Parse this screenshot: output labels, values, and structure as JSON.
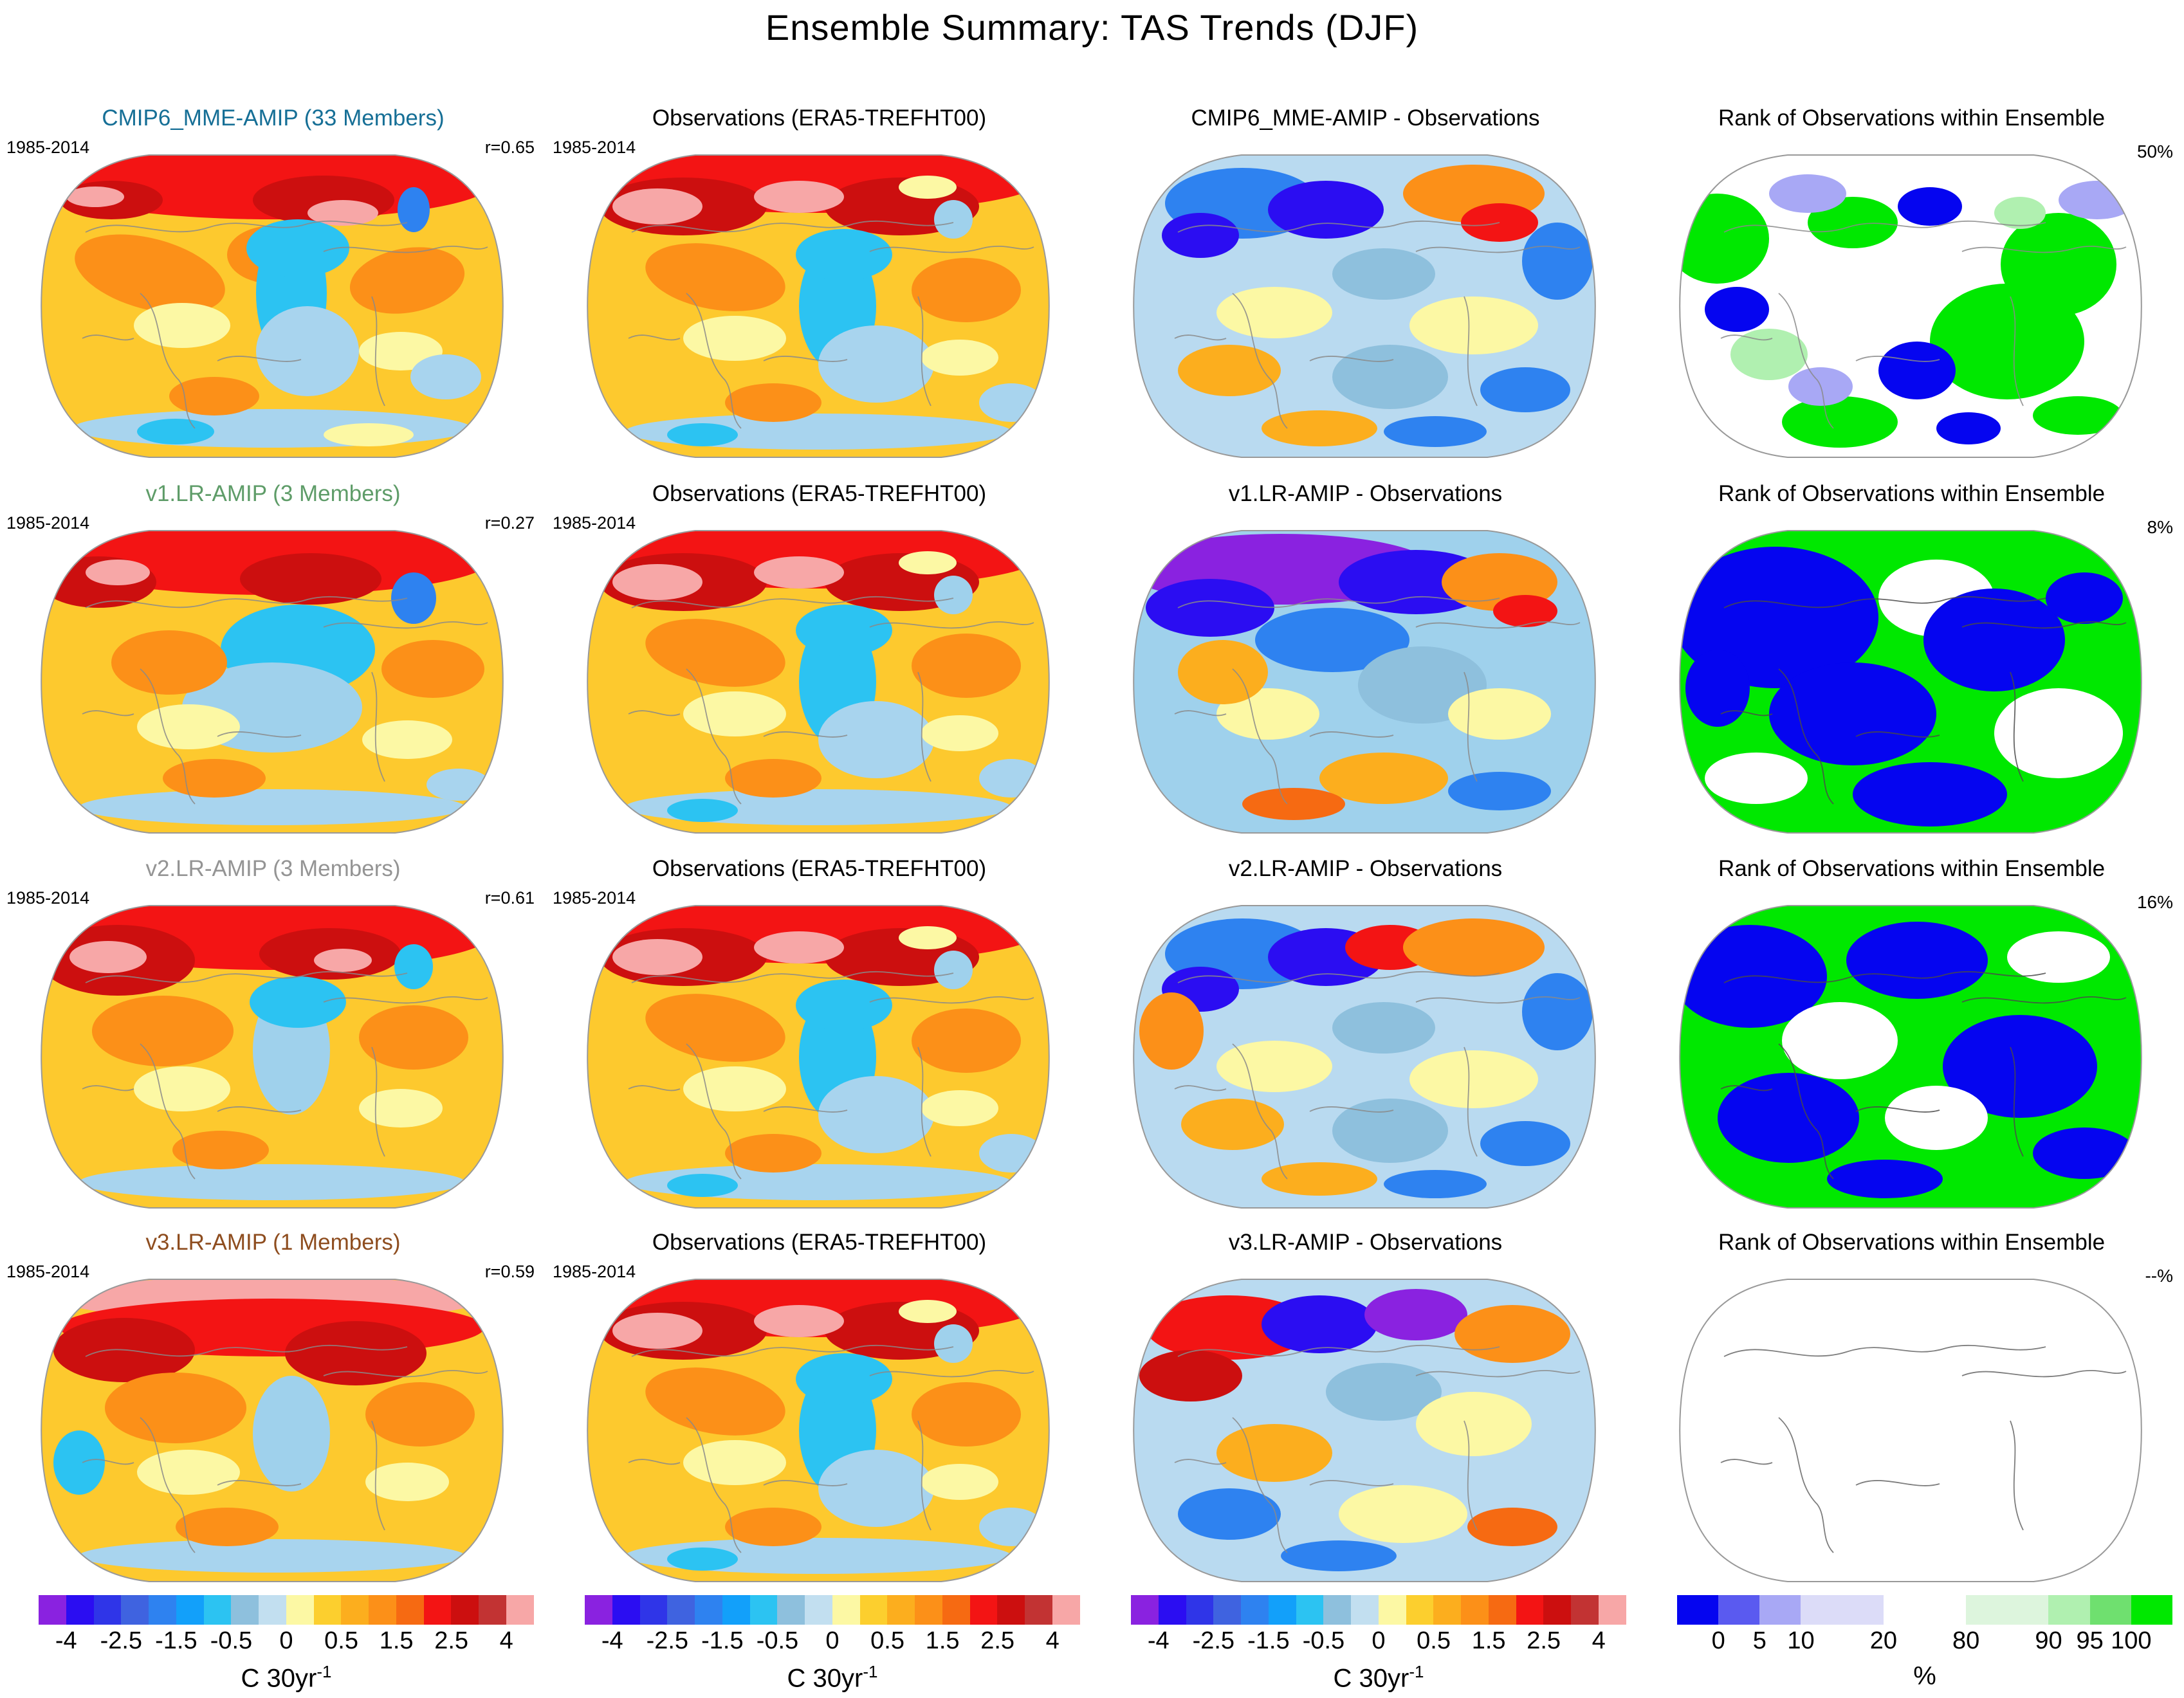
{
  "title": "Ensemble Summary: TAS Trends (DJF)",
  "rows": [
    {
      "model_title": "CMIP6_MME-AMIP (33 Members)",
      "title_style": "color:#166f96",
      "period": "1985-2014",
      "r_label": "r=0.65",
      "obs_title": "Observations (ERA5-TREFHT00)",
      "obs_period": "1985-2014",
      "diff_title": "CMIP6_MME-AMIP - Observations",
      "rank_title": "Rank of Observations within Ensemble",
      "rank_label": "50%"
    },
    {
      "model_title": "v1.LR-AMIP (3 Members)",
      "title_style": "color:#5e9c68",
      "period": "1985-2014",
      "r_label": "r=0.27",
      "obs_title": "Observations (ERA5-TREFHT00)",
      "obs_period": "1985-2014",
      "diff_title": "v1.LR-AMIP - Observations",
      "rank_title": "Rank of Observations within Ensemble",
      "rank_label": "8%"
    },
    {
      "model_title": "v2.LR-AMIP (3 Members)",
      "title_style": "color:#949494",
      "period": "1985-2014",
      "r_label": "r=0.61",
      "obs_title": "Observations (ERA5-TREFHT00)",
      "obs_period": "1985-2014",
      "diff_title": "v2.LR-AMIP - Observations",
      "rank_title": "Rank of Observations within Ensemble",
      "rank_label": "16%"
    },
    {
      "model_title": "v3.LR-AMIP (1 Members)",
      "title_style": "color:#8e4d1f",
      "period": "1985-2014",
      "r_label": "r=0.59",
      "obs_title": "Observations (ERA5-TREFHT00)",
      "obs_period": "1985-2014",
      "diff_title": "v3.LR-AMIP - Observations",
      "rank_title": "Rank of Observations within Ensemble",
      "rank_label": "--%"
    }
  ],
  "colorbars": {
    "temperature": {
      "ticks": [
        "-4",
        "-2.5",
        "-1.5",
        "-0.5",
        "0",
        "0.5",
        "1.5",
        "2.5",
        "4"
      ],
      "colors": [
        "#8a22e0",
        "#2b0df2",
        "#2f35e8",
        "#3f63e0",
        "#2e82f0",
        "#12a0fa",
        "#2cc3f2",
        "#8ec0dd",
        "#c2dff0",
        "#fcf8a4",
        "#fccf2e",
        "#fcae1e",
        "#fc9018",
        "#f66a12",
        "#f31414",
        "#cc0f0f",
        "#c23333",
        "#f7a7a7"
      ],
      "unit_base": "C 30yr",
      "unit_exp": "-1"
    },
    "rank": {
      "ticks": [
        "0",
        "5",
        "10",
        "20",
        "80",
        "90",
        "95",
        "100"
      ],
      "colors": [
        "#0505f0",
        "#5a5af0",
        "#a8a8f5",
        "#dcdcf8",
        "#ffffff",
        "#ddf5dd",
        "#b0f0b0",
        "#6fe06f",
        "#00e800"
      ],
      "segment_widths": [
        1,
        1,
        1,
        2,
        2,
        2,
        1,
        1,
        1
      ],
      "unit": "%"
    }
  },
  "chart_data": {
    "type": "heatmap",
    "subtype": "global-map-grid",
    "title": "Ensemble Summary: TAS Trends (DJF)",
    "projection": "Robinson",
    "variable": "TAS trend",
    "season": "DJF",
    "period": "1985-2014",
    "columns": [
      "Model ensemble mean trend",
      "Observations (ERA5-TREFHT00)",
      "Model - Observations",
      "Rank of Observations within Ensemble"
    ],
    "rows": [
      {
        "model": "CMIP6_MME-AMIP",
        "members": 33,
        "pattern_correlation": 0.65,
        "observation_rank_percent": 50
      },
      {
        "model": "v1.LR-AMIP",
        "members": 3,
        "pattern_correlation": 0.27,
        "observation_rank_percent": 8
      },
      {
        "model": "v2.LR-AMIP",
        "members": 3,
        "pattern_correlation": 0.61,
        "observation_rank_percent": 16
      },
      {
        "model": "v3.LR-AMIP",
        "members": 1,
        "pattern_correlation": 0.59,
        "observation_rank_percent": null
      }
    ],
    "trend_colorbar": {
      "unit": "C 30yr-1",
      "tick_values": [
        -4,
        -2.5,
        -1.5,
        -0.5,
        0,
        0.5,
        1.5,
        2.5,
        4
      ]
    },
    "rank_colorbar": {
      "unit": "%",
      "tick_values": [
        0,
        5,
        10,
        20,
        80,
        90,
        95,
        100
      ],
      "range": [
        0,
        100
      ]
    }
  }
}
